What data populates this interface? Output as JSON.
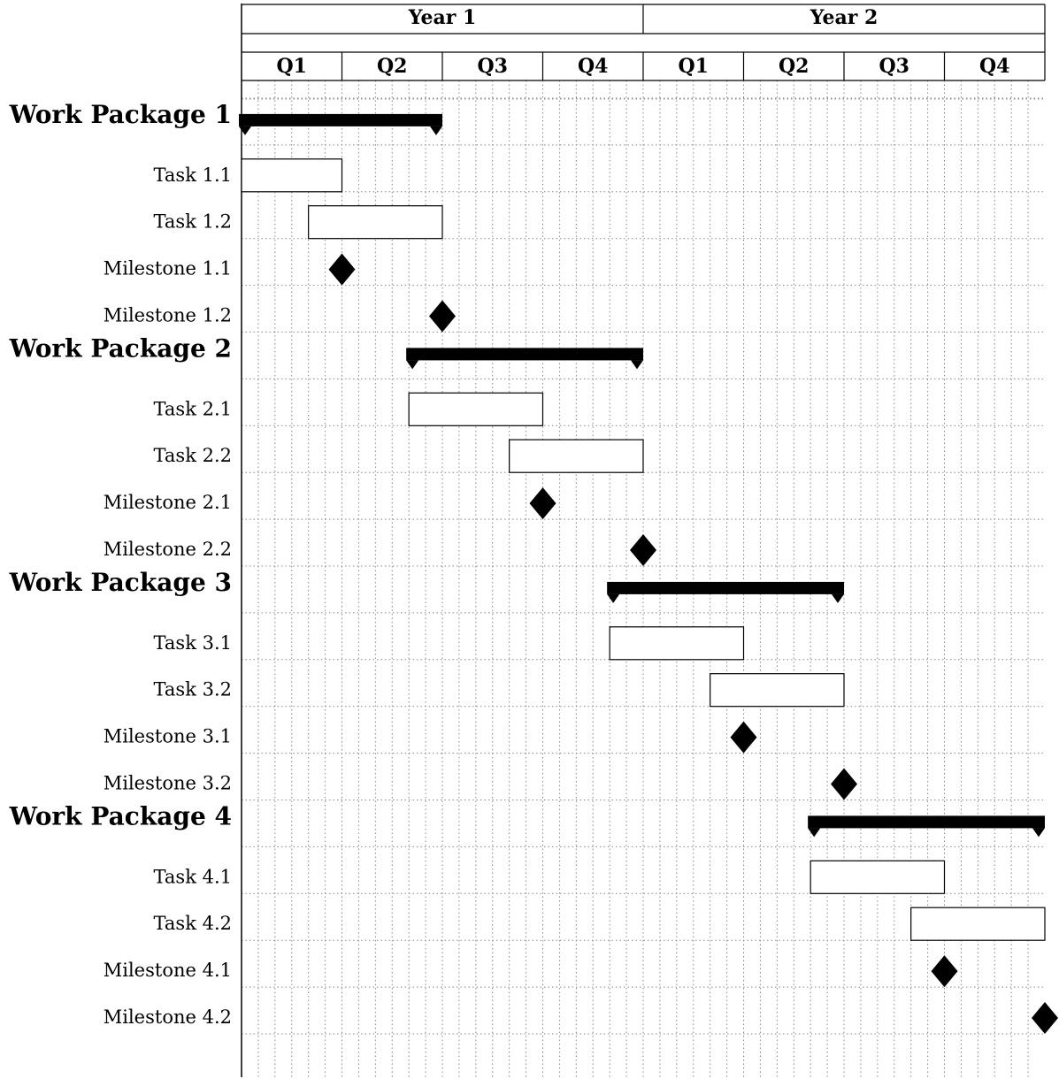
{
  "chart_data": {
    "type": "gantt",
    "title": "",
    "time_unit": "month",
    "total_months": 24,
    "grid": true,
    "years": [
      "Year 1",
      "Year 2"
    ],
    "quarters": [
      "Q1",
      "Q2",
      "Q3",
      "Q4",
      "Q1",
      "Q2",
      "Q3",
      "Q4"
    ],
    "rows": [
      {
        "label": "Work Package 1",
        "kind": "group",
        "start": 1,
        "end": 6
      },
      {
        "label": "Task 1.1",
        "kind": "task",
        "start": 1,
        "end": 3
      },
      {
        "label": "Task 1.2",
        "kind": "task",
        "start": 3,
        "end": 6
      },
      {
        "label": "Milestone 1.1",
        "kind": "milestone",
        "at": 3
      },
      {
        "label": "Milestone 1.2",
        "kind": "milestone",
        "at": 6
      },
      {
        "label": "Work Package 2",
        "kind": "group",
        "start": 6,
        "end": 12
      },
      {
        "label": "Task 2.1",
        "kind": "task",
        "start": 6,
        "end": 9
      },
      {
        "label": "Task 2.2",
        "kind": "task",
        "start": 9,
        "end": 12
      },
      {
        "label": "Milestone 2.1",
        "kind": "milestone",
        "at": 9
      },
      {
        "label": "Milestone 2.2",
        "kind": "milestone",
        "at": 12
      },
      {
        "label": "Work Package 3",
        "kind": "group",
        "start": 12,
        "end": 18
      },
      {
        "label": "Task 3.1",
        "kind": "task",
        "start": 12,
        "end": 15
      },
      {
        "label": "Task 3.2",
        "kind": "task",
        "start": 15,
        "end": 18
      },
      {
        "label": "Milestone 3.1",
        "kind": "milestone",
        "at": 15
      },
      {
        "label": "Milestone 3.2",
        "kind": "milestone",
        "at": 18
      },
      {
        "label": "Work Package 4",
        "kind": "group",
        "start": 18,
        "end": 24
      },
      {
        "label": "Task 4.1",
        "kind": "task",
        "start": 18,
        "end": 21
      },
      {
        "label": "Task 4.2",
        "kind": "task",
        "start": 21,
        "end": 24
      },
      {
        "label": "Milestone 4.1",
        "kind": "milestone",
        "at": 21
      },
      {
        "label": "Milestone 4.2",
        "kind": "milestone",
        "at": 24
      }
    ]
  }
}
